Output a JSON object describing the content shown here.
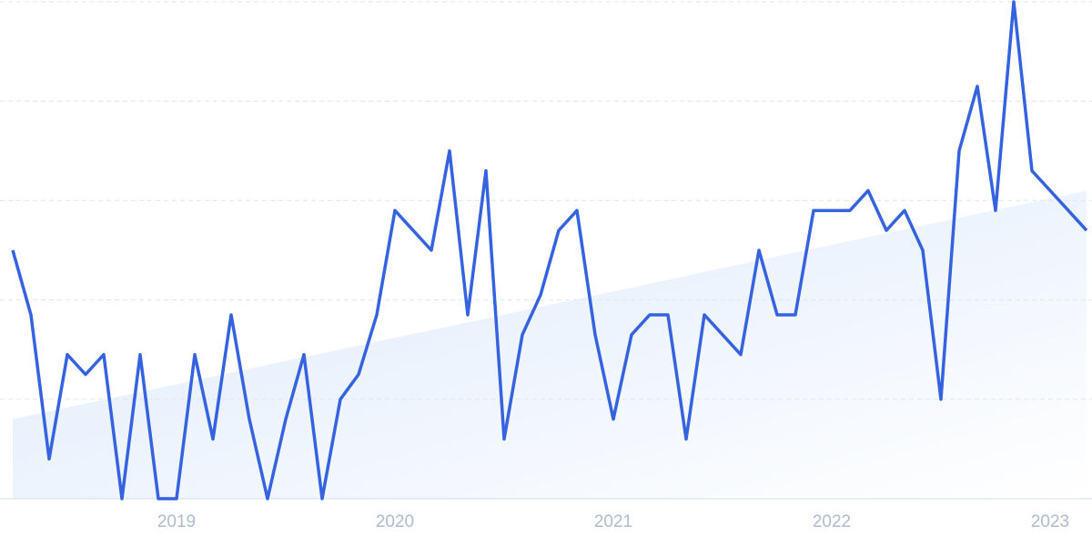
{
  "chart_data": {
    "type": "line",
    "categories": [
      null,
      null,
      null,
      null,
      null,
      null,
      null,
      null,
      null,
      "2019",
      null,
      null,
      null,
      null,
      null,
      null,
      null,
      null,
      null,
      null,
      null,
      "2020",
      null,
      null,
      null,
      null,
      null,
      null,
      null,
      null,
      null,
      null,
      null,
      "2021",
      null,
      null,
      null,
      null,
      null,
      null,
      null,
      null,
      null,
      null,
      null,
      "2022",
      null,
      null,
      null,
      null,
      null,
      null,
      null,
      null,
      null,
      null,
      null,
      "2023",
      null,
      null
    ],
    "series": [
      {
        "color": "#3563e0",
        "values": [
          50,
          37,
          8,
          29,
          25,
          29,
          0,
          29,
          0,
          0,
          29,
          12,
          37,
          16,
          0,
          16,
          29,
          0,
          20,
          25,
          37,
          58,
          54,
          50,
          70,
          37,
          66,
          12,
          33,
          41,
          54,
          58,
          33,
          16,
          33,
          37,
          37,
          12,
          37,
          33,
          29,
          50,
          37,
          37,
          58,
          58,
          58,
          62,
          54,
          58,
          50,
          20,
          70,
          83,
          58,
          100,
          66,
          62,
          58,
          54
        ]
      }
    ],
    "trend": [
      16,
      62
    ],
    "trend_color": "#dce9fb",
    "ylim": [
      0,
      100
    ],
    "yticks": [
      0,
      20,
      40,
      60,
      80,
      100
    ],
    "grid": true
  }
}
